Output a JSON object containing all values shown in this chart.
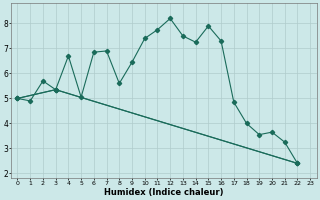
{
  "xlabel": "Humidex (Indice chaleur)",
  "bg_color": "#cce8e8",
  "grid_color": "#b0cccc",
  "line_color": "#1a6b5a",
  "xlim": [
    -0.5,
    23.5
  ],
  "ylim": [
    1.8,
    8.8
  ],
  "xticks": [
    0,
    1,
    2,
    3,
    4,
    5,
    6,
    7,
    8,
    9,
    10,
    11,
    12,
    13,
    14,
    15,
    16,
    17,
    18,
    19,
    20,
    21,
    22,
    23
  ],
  "yticks": [
    2,
    3,
    4,
    5,
    6,
    7,
    8
  ],
  "line1_x": [
    0,
    1,
    2,
    3,
    4,
    5,
    6,
    7,
    8,
    9,
    10,
    11,
    12,
    13,
    14,
    15,
    16,
    17,
    18,
    19,
    20,
    21,
    22
  ],
  "line1_y": [
    5.0,
    4.9,
    5.7,
    5.35,
    6.7,
    5.05,
    6.85,
    6.9,
    5.6,
    6.45,
    7.4,
    7.75,
    8.2,
    7.5,
    7.25,
    7.9,
    7.3,
    4.85,
    4.0,
    3.55,
    3.65,
    3.25,
    2.4
  ],
  "line2_x": [
    0,
    3,
    22
  ],
  "line2_y": [
    5.0,
    5.35,
    2.4
  ],
  "line3_x": [
    0,
    3,
    22
  ],
  "line3_y": [
    5.0,
    5.35,
    2.4
  ],
  "line4_x": [
    0,
    3,
    22
  ],
  "line4_y": [
    5.0,
    5.2,
    2.4
  ]
}
